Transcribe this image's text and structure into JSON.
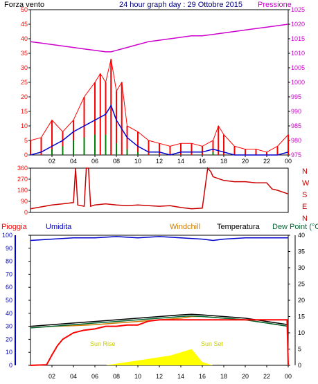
{
  "header": {
    "left": "Forza vento",
    "center": "24 hour graph day : 29 Ottobre 2015",
    "right": "Pressione"
  },
  "colors": {
    "wind": "#ff0000",
    "gust": "#ff0000",
    "avg_wind": "#0000cc",
    "green": "#008000",
    "pressure": "#cc00cc",
    "direction": "#cc0000",
    "rain": "#ff0000",
    "humidity": "#0000cc",
    "windchill": "#cc7a00",
    "temperature": "#000000",
    "dew_point": "#006633",
    "solar": "#ffff00",
    "axis_text": "#000000"
  },
  "panel_labels": {
    "direction_letters": [
      "N",
      "W",
      "S",
      "E",
      "N"
    ],
    "pioggia": "Pioggia",
    "umidita": "Umidita",
    "windchill": "Windchill",
    "temperatura": "Temperatura",
    "dewpoint": "Dew Point (°C",
    "sunrise": "Sun Rise",
    "sunset": "Sun Set"
  },
  "chart_data": [
    {
      "type": "line",
      "name": "wind and pressure",
      "x_ticks": [
        "02",
        "04",
        "06",
        "08",
        "10",
        "12",
        "14",
        "16",
        "18",
        "20",
        "22",
        "00"
      ],
      "y_left_ticks": [
        "0",
        "5",
        "10",
        "15",
        "20",
        "25",
        "30",
        "35",
        "40",
        "45",
        "50"
      ],
      "y_left_range": [
        0,
        50
      ],
      "y_right_ticks": [
        "975",
        "980",
        "985",
        "990",
        "995",
        "1000",
        "1005",
        "1010",
        "1015",
        "1020",
        "1025"
      ],
      "y_right_range": [
        975,
        1025
      ],
      "pressure": [
        [
          0,
          1014
        ],
        [
          1,
          1013.5
        ],
        [
          2,
          1013
        ],
        [
          3,
          1012.5
        ],
        [
          4,
          1012
        ],
        [
          5,
          1011.5
        ],
        [
          6,
          1011
        ],
        [
          7,
          1010.5
        ],
        [
          7.5,
          1010.5
        ],
        [
          8,
          1011
        ],
        [
          9,
          1012
        ],
        [
          10,
          1013
        ],
        [
          11,
          1014
        ],
        [
          12,
          1014.5
        ],
        [
          13,
          1015
        ],
        [
          14,
          1015.5
        ],
        [
          15,
          1016
        ],
        [
          16,
          1016
        ],
        [
          17,
          1016.5
        ],
        [
          18,
          1017
        ],
        [
          19,
          1017.5
        ],
        [
          20,
          1018
        ],
        [
          21,
          1018.5
        ],
        [
          22,
          1019
        ],
        [
          23,
          1019.5
        ],
        [
          24,
          1020
        ]
      ],
      "gust_peaks": [
        [
          0,
          5
        ],
        [
          1,
          6
        ],
        [
          2,
          12
        ],
        [
          3,
          8
        ],
        [
          4,
          12
        ],
        [
          5,
          20
        ],
        [
          6,
          25
        ],
        [
          6.5,
          28
        ],
        [
          7,
          25
        ],
        [
          7.5,
          33
        ],
        [
          8,
          22
        ],
        [
          8.5,
          25
        ],
        [
          9,
          10
        ],
        [
          10,
          8
        ],
        [
          11,
          5
        ],
        [
          12,
          4
        ],
        [
          13,
          3
        ],
        [
          14,
          4
        ],
        [
          15,
          4
        ],
        [
          16,
          3
        ],
        [
          17,
          5
        ],
        [
          17.5,
          10
        ],
        [
          18,
          7
        ],
        [
          19,
          3
        ],
        [
          20,
          2
        ],
        [
          21,
          2
        ],
        [
          22,
          1
        ],
        [
          23,
          3
        ],
        [
          24,
          7
        ]
      ],
      "avg_wind": [
        [
          0,
          0
        ],
        [
          1,
          1
        ],
        [
          2,
          3
        ],
        [
          3,
          5
        ],
        [
          4,
          8
        ],
        [
          5,
          10
        ],
        [
          6,
          12
        ],
        [
          7,
          14
        ],
        [
          7.5,
          17
        ],
        [
          8,
          12
        ],
        [
          9,
          6
        ],
        [
          10,
          3
        ],
        [
          11,
          1
        ],
        [
          12,
          1
        ],
        [
          13,
          0
        ],
        [
          14,
          1
        ],
        [
          15,
          1
        ],
        [
          16,
          1
        ],
        [
          17,
          2
        ],
        [
          18,
          1
        ],
        [
          19,
          0
        ],
        [
          20,
          0
        ],
        [
          21,
          0
        ],
        [
          22,
          0
        ],
        [
          23,
          0
        ],
        [
          24,
          1
        ]
      ],
      "green_peaks": [
        [
          2,
          2
        ],
        [
          3,
          3
        ],
        [
          4,
          5
        ],
        [
          5,
          6
        ],
        [
          6,
          7
        ],
        [
          7,
          7
        ],
        [
          8,
          4
        ],
        [
          9,
          2
        ],
        [
          10,
          1
        ],
        [
          17,
          1
        ]
      ]
    },
    {
      "type": "line",
      "name": "wind direction",
      "y_ticks": [
        "0",
        "90",
        "180",
        "270",
        "360"
      ],
      "y_range": [
        0,
        360
      ],
      "direction": [
        [
          0,
          30
        ],
        [
          1,
          45
        ],
        [
          2,
          60
        ],
        [
          3,
          70
        ],
        [
          4,
          80
        ],
        [
          4.2,
          360
        ],
        [
          4.4,
          60
        ],
        [
          5,
          50
        ],
        [
          5.2,
          360
        ],
        [
          5.4,
          360
        ],
        [
          5.6,
          50
        ],
        [
          6,
          60
        ],
        [
          7,
          70
        ],
        [
          8,
          60
        ],
        [
          9,
          55
        ],
        [
          10,
          60
        ],
        [
          11,
          55
        ],
        [
          12,
          50
        ],
        [
          13,
          55
        ],
        [
          14,
          40
        ],
        [
          15,
          30
        ],
        [
          16,
          35
        ],
        [
          16.5,
          360
        ],
        [
          16.8,
          330
        ],
        [
          17,
          290
        ],
        [
          18,
          260
        ],
        [
          19,
          250
        ],
        [
          20,
          250
        ],
        [
          21,
          240
        ],
        [
          22,
          240
        ],
        [
          22.5,
          190
        ],
        [
          23,
          180
        ],
        [
          24,
          150
        ]
      ]
    },
    {
      "type": "line",
      "name": "rain humidity temperature",
      "y_left_ticks": [
        "0",
        "10",
        "20",
        "30",
        "40",
        "50",
        "60",
        "70",
        "80",
        "90",
        "100"
      ],
      "y_left_range": [
        0,
        100
      ],
      "y_right_ticks": [
        "0",
        "5",
        "10",
        "15",
        "20",
        "25",
        "30",
        "35",
        "40"
      ],
      "y_right_range": [
        0,
        40
      ],
      "rain": [
        [
          0,
          0
        ],
        [
          1.5,
          0.5
        ],
        [
          2,
          8
        ],
        [
          2.5,
          15
        ],
        [
          3,
          20
        ],
        [
          4,
          25
        ],
        [
          5,
          27
        ],
        [
          6,
          28
        ],
        [
          7,
          30
        ],
        [
          8,
          30
        ],
        [
          9,
          31
        ],
        [
          10,
          31
        ],
        [
          11,
          34
        ],
        [
          12,
          35
        ],
        [
          13,
          35
        ],
        [
          14,
          35
        ],
        [
          15,
          35
        ],
        [
          16,
          35
        ],
        [
          17,
          35
        ],
        [
          18,
          35
        ],
        [
          19,
          35
        ],
        [
          20,
          35
        ],
        [
          21,
          35
        ],
        [
          22,
          35
        ],
        [
          23,
          35
        ],
        [
          23.9,
          35
        ],
        [
          24,
          0
        ]
      ],
      "humidity": [
        [
          0,
          96
        ],
        [
          2,
          97
        ],
        [
          4,
          98
        ],
        [
          6,
          98
        ],
        [
          8,
          99
        ],
        [
          10,
          98
        ],
        [
          12,
          99
        ],
        [
          14,
          98
        ],
        [
          16,
          97
        ],
        [
          17,
          96
        ],
        [
          18,
          97
        ],
        [
          20,
          98
        ],
        [
          22,
          98
        ],
        [
          24,
          98
        ]
      ],
      "windchill": [
        [
          0,
          11.5
        ],
        [
          2,
          12
        ],
        [
          4,
          12.2
        ],
        [
          6,
          12.5
        ],
        [
          8,
          13
        ],
        [
          10,
          13.5
        ],
        [
          12,
          14
        ],
        [
          14,
          14.5
        ],
        [
          15,
          15
        ],
        [
          16,
          15
        ],
        [
          18,
          14.5
        ],
        [
          20,
          14
        ],
        [
          22,
          13
        ],
        [
          24,
          12
        ]
      ],
      "temperature": [
        [
          0,
          12
        ],
        [
          2,
          12.5
        ],
        [
          4,
          13
        ],
        [
          6,
          13.5
        ],
        [
          8,
          14
        ],
        [
          10,
          14.5
        ],
        [
          12,
          15
        ],
        [
          14,
          15.5
        ],
        [
          15,
          15.7
        ],
        [
          16,
          15.5
        ],
        [
          18,
          15
        ],
        [
          20,
          14.5
        ],
        [
          22,
          13.5
        ],
        [
          24,
          12.5
        ]
      ],
      "dew_point": [
        [
          0,
          11.5
        ],
        [
          2,
          12
        ],
        [
          4,
          12.5
        ],
        [
          6,
          13
        ],
        [
          8,
          13.5
        ],
        [
          10,
          14
        ],
        [
          12,
          14.5
        ],
        [
          14,
          15
        ],
        [
          15,
          15.2
        ],
        [
          16,
          15
        ],
        [
          18,
          14.5
        ],
        [
          20,
          14
        ],
        [
          22,
          13
        ],
        [
          24,
          12
        ]
      ],
      "solar": [
        [
          0,
          0
        ],
        [
          7,
          0
        ],
        [
          8,
          0.5
        ],
        [
          9,
          1
        ],
        [
          10,
          1.5
        ],
        [
          11,
          2
        ],
        [
          12,
          2.5
        ],
        [
          13,
          3
        ],
        [
          14,
          4
        ],
        [
          15,
          5
        ],
        [
          15.5,
          3
        ],
        [
          16,
          1
        ],
        [
          17,
          0
        ],
        [
          24,
          0
        ]
      ]
    }
  ]
}
